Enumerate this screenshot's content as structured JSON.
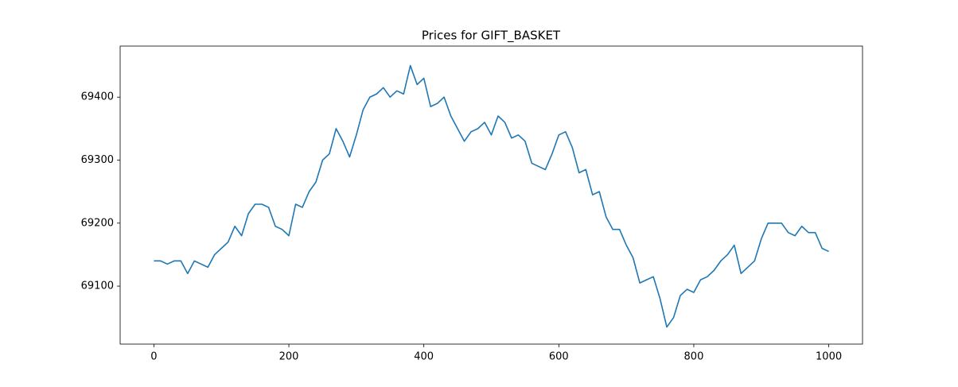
{
  "chart_data": {
    "type": "line",
    "title": "Prices for GIFT_BASKET",
    "x": [
      0,
      10,
      20,
      30,
      40,
      50,
      60,
      70,
      80,
      90,
      100,
      110,
      120,
      130,
      140,
      150,
      160,
      170,
      180,
      190,
      200,
      210,
      220,
      230,
      240,
      250,
      260,
      270,
      280,
      290,
      300,
      310,
      320,
      330,
      340,
      350,
      360,
      370,
      380,
      390,
      400,
      410,
      420,
      430,
      440,
      450,
      460,
      470,
      480,
      490,
      500,
      510,
      520,
      530,
      540,
      550,
      560,
      570,
      580,
      590,
      600,
      610,
      620,
      630,
      640,
      650,
      660,
      670,
      680,
      690,
      700,
      710,
      720,
      730,
      740,
      750,
      760,
      770,
      780,
      790,
      800,
      810,
      820,
      830,
      840,
      850,
      860,
      870,
      880,
      890,
      900,
      910,
      920,
      930,
      940,
      950,
      960,
      970,
      980,
      990,
      1000
    ],
    "series": [
      {
        "name": "GIFT_BASKET",
        "color": "#1f77b4",
        "values": [
          69140,
          69140,
          69135,
          69140,
          69140,
          69120,
          69140,
          69135,
          69130,
          69150,
          69160,
          69170,
          69195,
          69180,
          69215,
          69230,
          69230,
          69225,
          69195,
          69190,
          69180,
          69230,
          69225,
          69250,
          69265,
          69300,
          69310,
          69350,
          69330,
          69305,
          69340,
          69380,
          69400,
          69405,
          69415,
          69400,
          69410,
          69405,
          69450,
          69420,
          69430,
          69385,
          69390,
          69400,
          69370,
          69350,
          69330,
          69345,
          69350,
          69360,
          69340,
          69370,
          69360,
          69335,
          69340,
          69330,
          69295,
          69290,
          69285,
          69310,
          69340,
          69345,
          69320,
          69280,
          69285,
          69245,
          69250,
          69210,
          69190,
          69190,
          69165,
          69145,
          69105,
          69110,
          69115,
          69080,
          69035,
          69050,
          69085,
          69095,
          69090,
          69110,
          69115,
          69125,
          69140,
          69150,
          69165,
          69120,
          69130,
          69140,
          69175,
          69200,
          69200,
          69200,
          69185,
          69180,
          69195,
          69185,
          69185,
          69160,
          69155
        ]
      }
    ],
    "xlim": [
      -50,
      1050
    ],
    "xticks": [
      0,
      200,
      400,
      600,
      800,
      1000
    ],
    "ylim": [
      69008,
      69481
    ],
    "yticks": [
      69100,
      69200,
      69300,
      69400
    ]
  }
}
